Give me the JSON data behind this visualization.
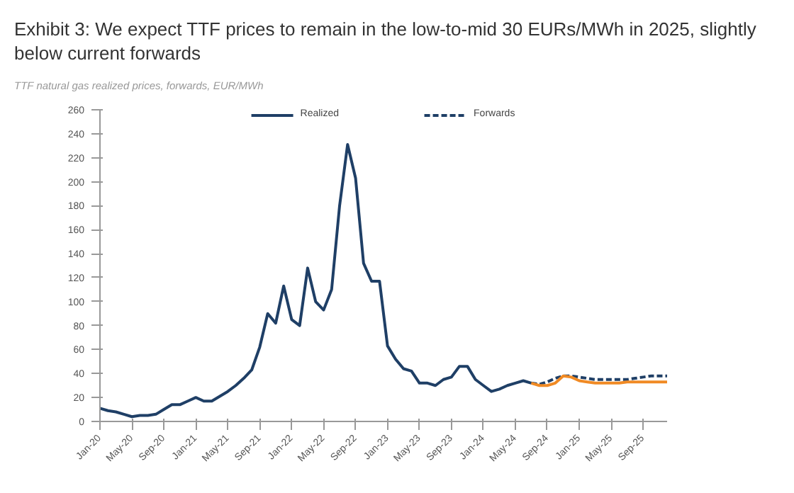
{
  "chart_data": {
    "type": "line",
    "title": "Exhibit 3: We expect TTF prices to remain in the low-to-mid 30 EURs/MWh in 2025, slightly below current forwards",
    "subtitle": "TTF natural gas realized prices, forwards, EUR/MWh",
    "xlim": [
      "2020-01",
      "2025-12"
    ],
    "xticks": [
      {
        "value": "2020-01",
        "label": "Jan-20"
      },
      {
        "value": "2020-05",
        "label": "May-20"
      },
      {
        "value": "2020-09",
        "label": "Sep-20"
      },
      {
        "value": "2021-01",
        "label": "Jan-21"
      },
      {
        "value": "2021-05",
        "label": "May-21"
      },
      {
        "value": "2021-09",
        "label": "Sep-21"
      },
      {
        "value": "2022-01",
        "label": "Jan-22"
      },
      {
        "value": "2022-05",
        "label": "May-22"
      },
      {
        "value": "2022-09",
        "label": "Sep-22"
      },
      {
        "value": "2023-01",
        "label": "Jan-23"
      },
      {
        "value": "2023-05",
        "label": "May-23"
      },
      {
        "value": "2023-09",
        "label": "Sep-23"
      },
      {
        "value": "2024-01",
        "label": "Jan-24"
      },
      {
        "value": "2024-05",
        "label": "May-24"
      },
      {
        "value": "2024-09",
        "label": "Sep-24"
      },
      {
        "value": "2025-01",
        "label": "Jan-25"
      },
      {
        "value": "2025-05",
        "label": "May-25"
      },
      {
        "value": "2025-09",
        "label": "Sep-25"
      }
    ],
    "ylim": [
      0,
      260
    ],
    "yticks": [
      0,
      20,
      40,
      60,
      80,
      100,
      120,
      140,
      160,
      180,
      200,
      220,
      240,
      260
    ],
    "grid": false,
    "legend": "top",
    "marker": "none",
    "series": [
      {
        "name": "Realized",
        "color": "#1f3f66",
        "line_style": "solid",
        "x": [
          "2020-01",
          "2020-02",
          "2020-03",
          "2020-04",
          "2020-05",
          "2020-06",
          "2020-07",
          "2020-08",
          "2020-09",
          "2020-10",
          "2020-11",
          "2020-12",
          "2021-01",
          "2021-02",
          "2021-03",
          "2021-04",
          "2021-05",
          "2021-06",
          "2021-07",
          "2021-08",
          "2021-09",
          "2021-10",
          "2021-11",
          "2021-12",
          "2022-01",
          "2022-02",
          "2022-03",
          "2022-04",
          "2022-05",
          "2022-06",
          "2022-07",
          "2022-08",
          "2022-09",
          "2022-10",
          "2022-11",
          "2022-12",
          "2023-01",
          "2023-02",
          "2023-03",
          "2023-04",
          "2023-05",
          "2023-06",
          "2023-07",
          "2023-08",
          "2023-09",
          "2023-10",
          "2023-11",
          "2023-12",
          "2024-01",
          "2024-02",
          "2024-03",
          "2024-04",
          "2024-05",
          "2024-06",
          "2024-07"
        ],
        "values": [
          11,
          9,
          8,
          6,
          4,
          5,
          5,
          6,
          10,
          14,
          14,
          17,
          20,
          17,
          17,
          21,
          25,
          30,
          36,
          43,
          62,
          90,
          82,
          113,
          85,
          80,
          128,
          100,
          93,
          110,
          180,
          231,
          203,
          132,
          117,
          117,
          63,
          52,
          44,
          42,
          32,
          32,
          30,
          35,
          37,
          46,
          46,
          35,
          30,
          25,
          27,
          30,
          32,
          34,
          32
        ]
      },
      {
        "name": "Forwards",
        "color": "#1f3f66",
        "line_style": "dashed",
        "x": [
          "2024-07",
          "2024-08",
          "2024-09",
          "2024-10",
          "2024-11",
          "2024-12",
          "2025-01",
          "2025-02",
          "2025-03",
          "2025-04",
          "2025-05",
          "2025-06",
          "2025-07",
          "2025-08",
          "2025-09",
          "2025-10",
          "2025-11",
          "2025-12"
        ],
        "values": [
          32,
          31,
          33,
          36,
          38,
          38,
          37,
          36,
          35,
          35,
          35,
          35,
          35,
          36,
          37,
          38,
          38,
          38
        ]
      },
      {
        "color": "#f08a24",
        "line_style": "solid",
        "x": [
          "2024-07",
          "2024-08",
          "2024-09",
          "2024-10",
          "2024-11",
          "2024-12",
          "2025-01",
          "2025-02",
          "2025-03",
          "2025-04",
          "2025-05",
          "2025-06",
          "2025-07",
          "2025-08",
          "2025-09",
          "2025-10",
          "2025-11",
          "2025-12"
        ],
        "values": [
          32,
          30,
          30,
          32,
          38,
          37,
          34,
          33,
          32,
          32,
          32,
          32,
          33,
          33,
          33,
          33,
          33,
          33
        ]
      }
    ]
  }
}
